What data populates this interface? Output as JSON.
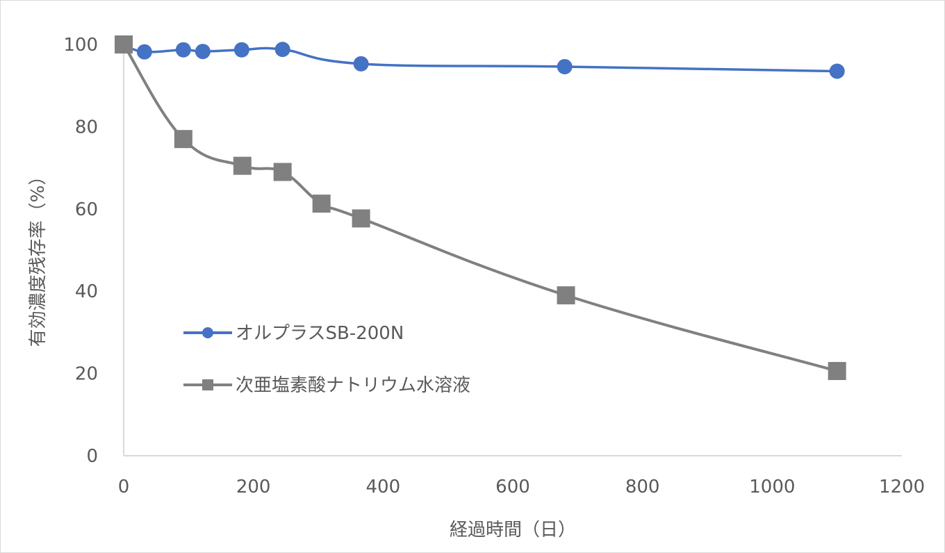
{
  "chart_data": {
    "type": "line",
    "title": "",
    "xlabel": "経過時間（日）",
    "ylabel": "有効濃度残存率（%）",
    "xlim": [
      0,
      1200
    ],
    "ylim": [
      0,
      100
    ],
    "xticks": [
      "0",
      "200",
      "400",
      "600",
      "800",
      "1000",
      "1200"
    ],
    "yticks": [
      "0",
      "20",
      "40",
      "60",
      "80",
      "100"
    ],
    "grid": false,
    "legend_position": "left",
    "smooth": true,
    "series": [
      {
        "name": "オルプラスSB-200N",
        "color": "#4472C4",
        "marker": "circle",
        "x": [
          0,
          32,
          92,
          122,
          182,
          245,
          366,
          680,
          1100
        ],
        "y": [
          100,
          98.2,
          98.7,
          98.3,
          98.7,
          98.8,
          95.3,
          94.6,
          93.5
        ]
      },
      {
        "name": "次亜塩素酸ナトリウム水溶液",
        "color": "#808080",
        "marker": "square",
        "x": [
          0,
          92,
          183,
          245,
          305,
          366,
          682,
          1100
        ],
        "y": [
          100,
          77,
          70.5,
          69,
          61.3,
          57.7,
          39,
          20.6
        ]
      }
    ]
  }
}
